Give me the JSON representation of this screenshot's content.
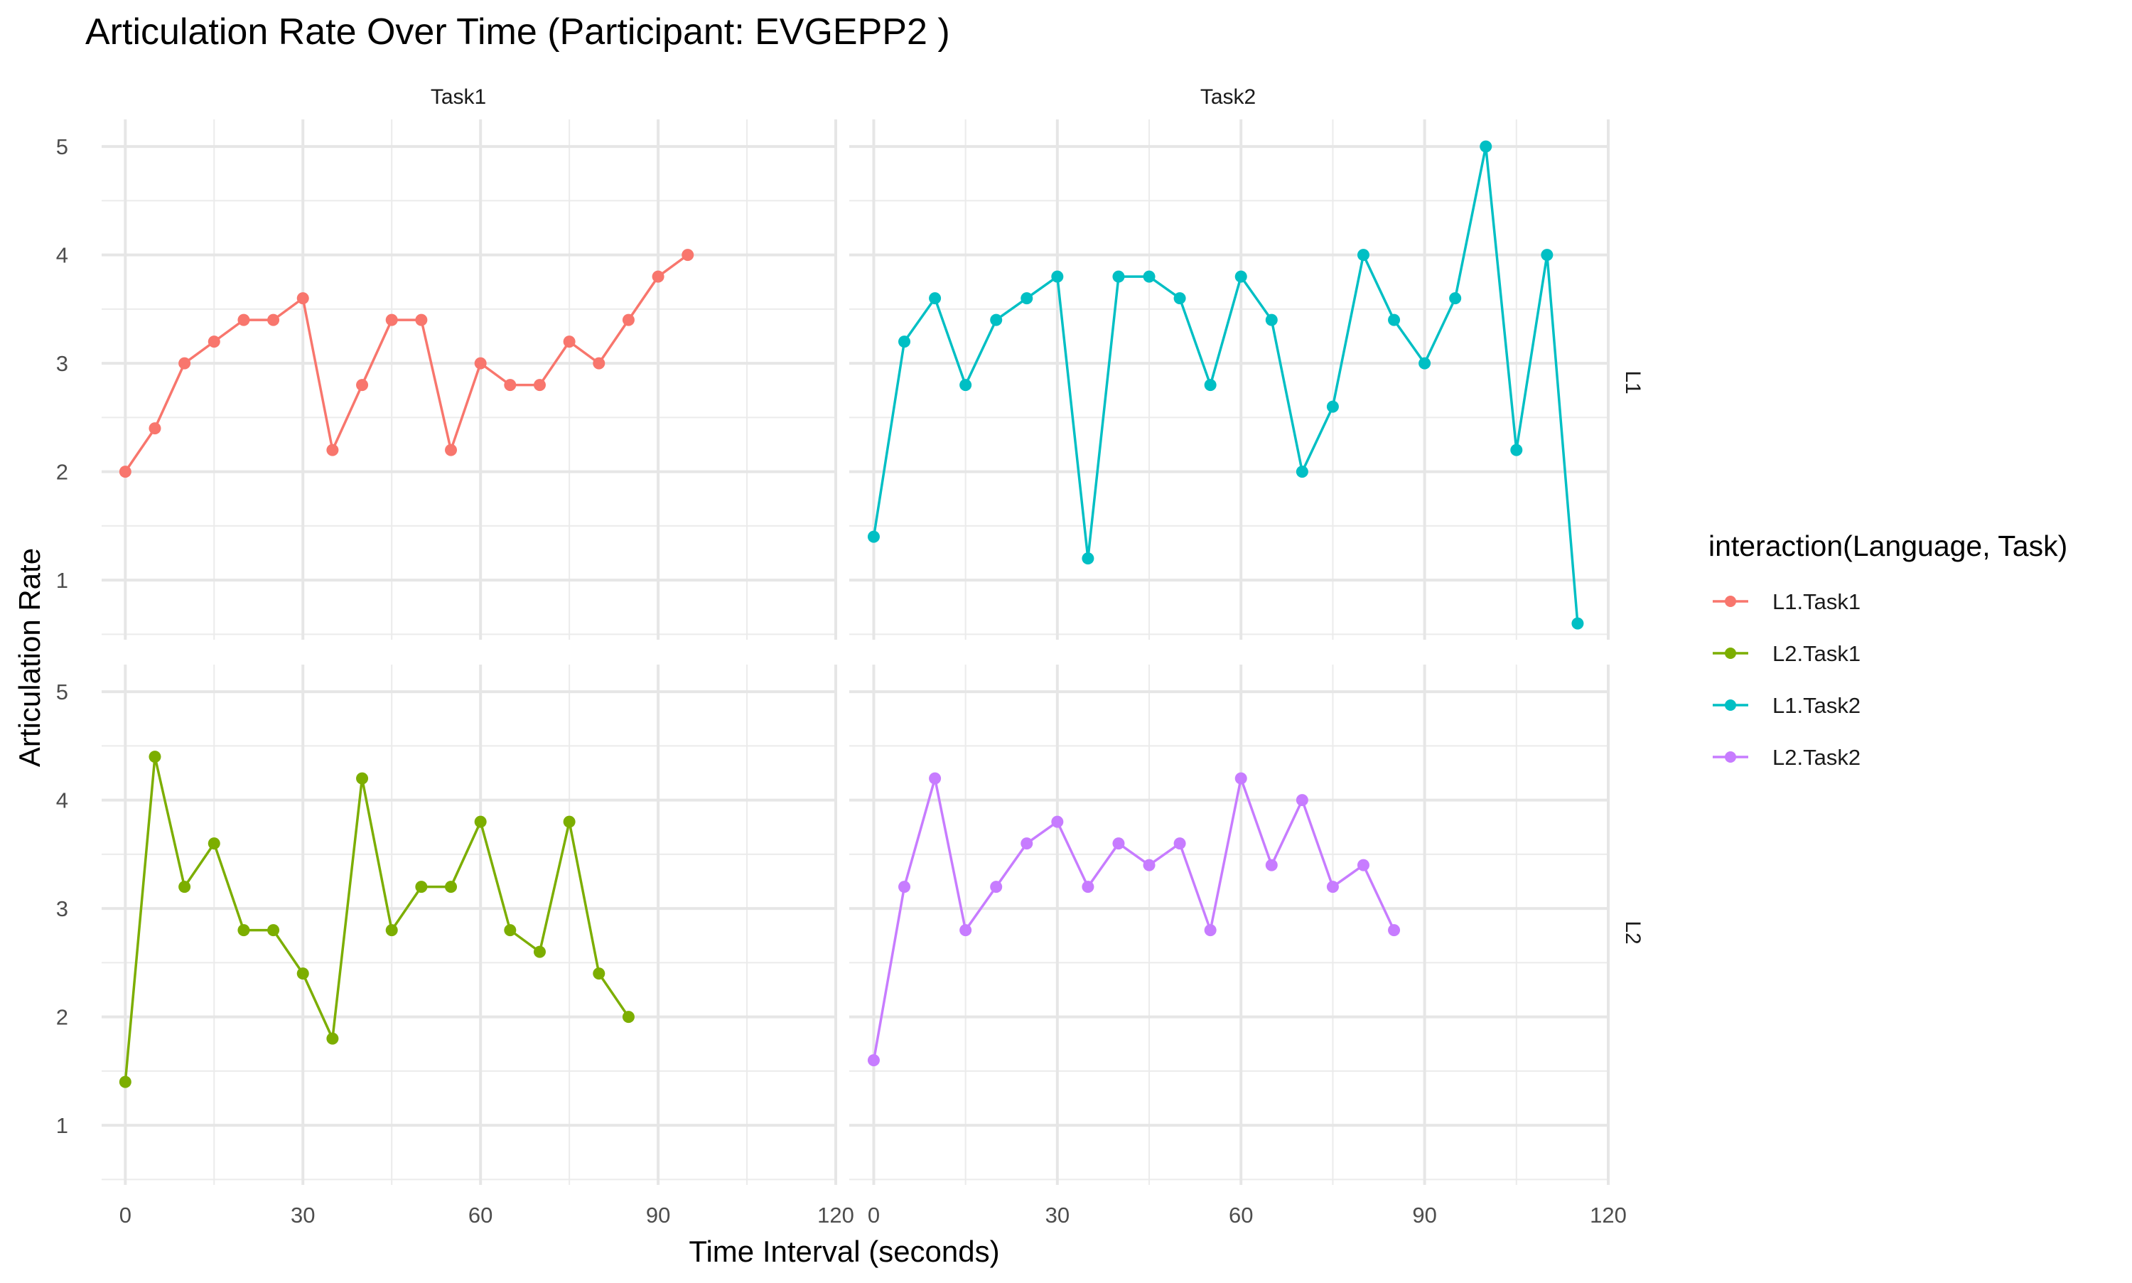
{
  "chart_data": {
    "type": "line",
    "title": "Articulation Rate Over Time (Participant: EVGEPP2 )",
    "xlabel": "Time Interval (seconds)",
    "ylabel": "Articulation Rate",
    "xlim": [
      -4,
      120
    ],
    "ylim": [
      0.45,
      5.25
    ],
    "x_ticks": [
      0,
      30,
      60,
      90,
      120
    ],
    "y_ticks": [
      1,
      2,
      3,
      4,
      5
    ],
    "grid": true,
    "facet_cols": [
      "Task1",
      "Task2"
    ],
    "facet_rows": [
      "L1",
      "L2"
    ],
    "legend": {
      "title": "interaction(Language, Task)",
      "position": "right",
      "entries": [
        "L1.Task1",
        "L2.Task1",
        "L1.Task2",
        "L2.Task2"
      ]
    },
    "series": [
      {
        "name": "L1.Task1",
        "color": "#f8766d",
        "facet_col": "Task1",
        "facet_row": "L1",
        "x": [
          0,
          5,
          10,
          15,
          20,
          25,
          30,
          35,
          40,
          45,
          50,
          55,
          60,
          65,
          70,
          75,
          80,
          85,
          90,
          95
        ],
        "values": [
          2.0,
          2.4,
          3.0,
          3.2,
          3.4,
          3.4,
          3.6,
          2.2,
          2.8,
          3.4,
          3.4,
          2.2,
          3.0,
          2.8,
          2.8,
          3.2,
          3.0,
          3.4,
          3.8,
          4.0
        ]
      },
      {
        "name": "L2.Task1",
        "color": "#7cae00",
        "facet_col": "Task1",
        "facet_row": "L2",
        "x": [
          0,
          5,
          10,
          15,
          20,
          25,
          30,
          35,
          40,
          45,
          50,
          55,
          60,
          65,
          70,
          75,
          80,
          85
        ],
        "values": [
          1.4,
          4.4,
          3.2,
          3.6,
          2.8,
          2.8,
          2.4,
          1.8,
          4.2,
          2.8,
          3.2,
          3.2,
          3.8,
          2.8,
          2.6,
          3.8,
          2.4,
          2.0
        ]
      },
      {
        "name": "L1.Task2",
        "color": "#00bfc4",
        "facet_col": "Task2",
        "facet_row": "L1",
        "x": [
          0,
          5,
          10,
          15,
          20,
          25,
          30,
          35,
          40,
          45,
          50,
          55,
          60,
          65,
          70,
          75,
          80,
          85,
          90,
          95,
          100,
          105,
          110,
          115
        ],
        "values": [
          1.4,
          3.2,
          3.6,
          2.8,
          3.4,
          3.6,
          3.8,
          1.2,
          3.8,
          3.8,
          3.6,
          2.8,
          3.8,
          3.4,
          2.0,
          2.6,
          4.0,
          3.4,
          3.0,
          3.6,
          5.0,
          2.2,
          4.0,
          0.6
        ]
      },
      {
        "name": "L2.Task2",
        "color": "#c77cff",
        "facet_col": "Task2",
        "facet_row": "L2",
        "x": [
          0,
          5,
          10,
          15,
          20,
          25,
          30,
          35,
          40,
          45,
          50,
          55,
          60,
          65,
          70,
          75,
          80,
          85
        ],
        "values": [
          1.6,
          3.2,
          4.2,
          2.8,
          3.2,
          3.6,
          3.8,
          3.2,
          3.6,
          3.4,
          3.6,
          2.8,
          4.2,
          3.4,
          4.0,
          3.2,
          3.4,
          2.8
        ]
      }
    ]
  }
}
